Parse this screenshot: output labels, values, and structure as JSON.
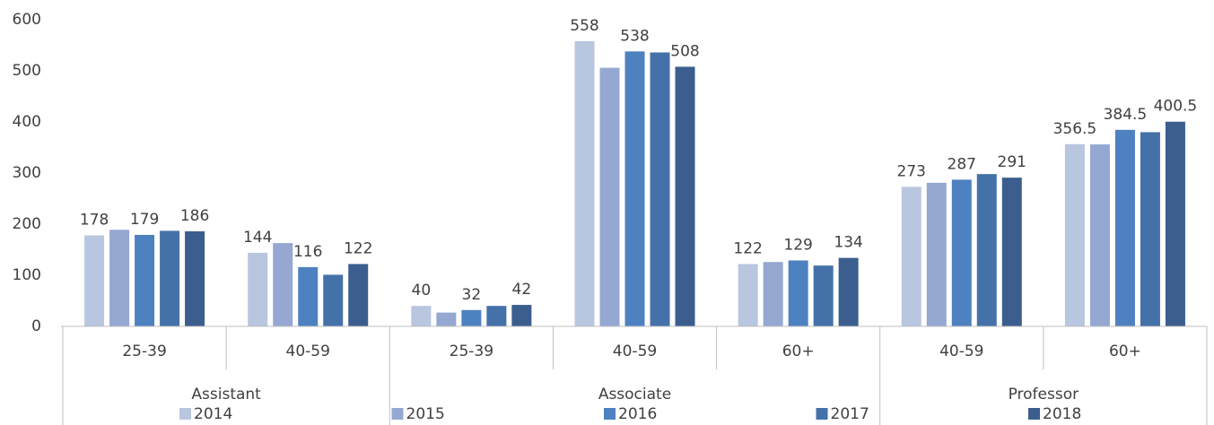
{
  "chart_data": {
    "type": "bar",
    "groups": [
      {
        "name": "Assistant",
        "categories": [
          "25-39",
          "40-59"
        ]
      },
      {
        "name": "Associate",
        "categories": [
          "25-39",
          "40-59",
          "60+"
        ]
      },
      {
        "name": "Professor",
        "categories": [
          "40-59",
          "60+"
        ]
      }
    ],
    "series": [
      {
        "name": "2014",
        "color": "#b9c6e0",
        "labels": true,
        "values": [
          178,
          144,
          40,
          558,
          122,
          273,
          356.5
        ]
      },
      {
        "name": "2015",
        "color": "#94a8d2",
        "labels": false,
        "values": [
          189,
          163,
          27,
          506,
          126,
          281,
          356
        ]
      },
      {
        "name": "2016",
        "color": "#4e81c0",
        "labels": true,
        "values": [
          179,
          116,
          32,
          538,
          129,
          287,
          384.5
        ]
      },
      {
        "name": "2017",
        "color": "#4472a8",
        "labels": false,
        "values": [
          187,
          101,
          40,
          536,
          119,
          298,
          380
        ]
      },
      {
        "name": "2018",
        "color": "#3b5e8f",
        "labels": true,
        "values": [
          186,
          122,
          42,
          508,
          134,
          291,
          400.5
        ]
      }
    ],
    "ylim": [
      0,
      600
    ],
    "yticks": [
      0,
      100,
      200,
      300,
      400,
      500,
      600
    ],
    "grid": false,
    "legend": "bottom"
  }
}
